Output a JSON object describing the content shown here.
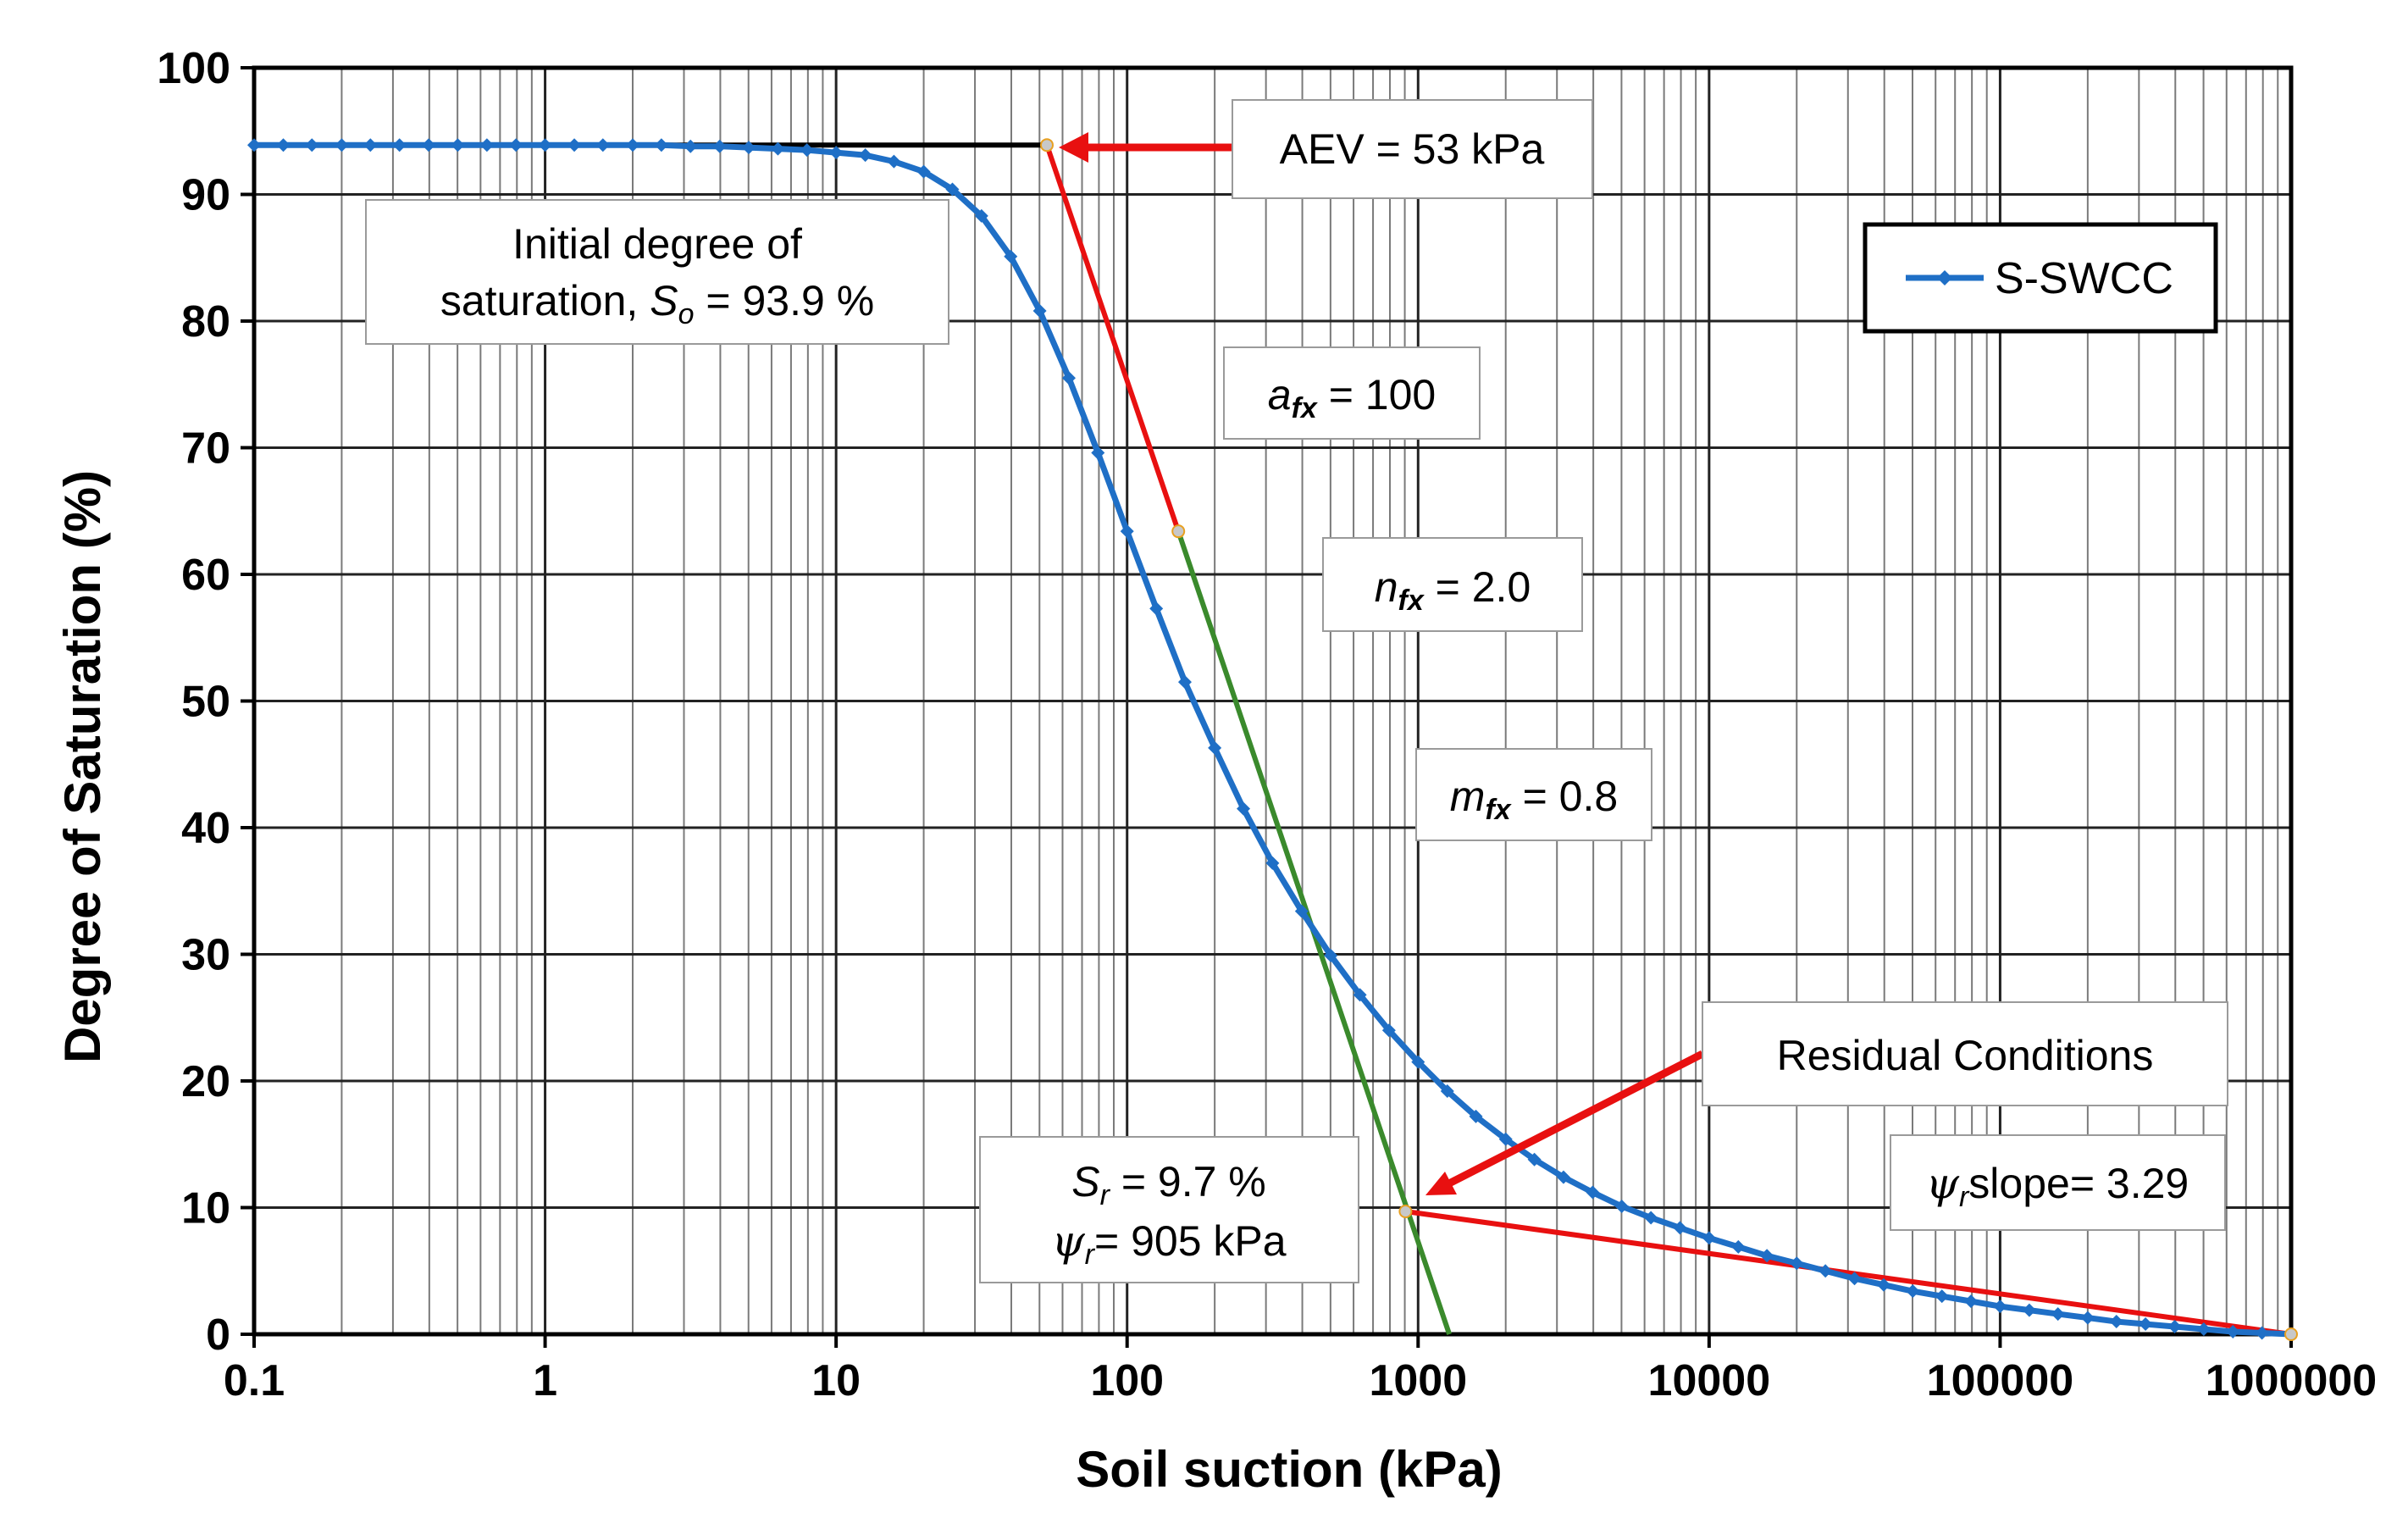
{
  "chart_data": {
    "type": "line",
    "xscale": "log",
    "xlim": [
      0.1,
      1000000
    ],
    "ylim": [
      0,
      100
    ],
    "xlabel": "Soil suction (kPa)",
    "ylabel": "Degree of Saturation (%)",
    "x_tick_labels": [
      "0.1",
      "1",
      "10",
      "100",
      "1000",
      "10000",
      "100000",
      "1000000"
    ],
    "y_tick_labels": [
      "0",
      "10",
      "20",
      "30",
      "40",
      "50",
      "60",
      "70",
      "80",
      "90",
      "100"
    ],
    "grid": true,
    "legend": {
      "position": "top-right",
      "entries": [
        "S-SWCC"
      ]
    },
    "series": [
      {
        "name": "S-SWCC",
        "color": "#1f6fc6",
        "x": [
          0.1,
          0.126,
          0.158,
          0.2,
          0.251,
          0.316,
          0.398,
          0.501,
          0.631,
          0.794,
          1,
          1.26,
          1.58,
          2,
          2.51,
          3.16,
          3.98,
          5.01,
          6.31,
          7.94,
          10,
          12.6,
          15.8,
          20,
          25.1,
          31.6,
          39.8,
          50.1,
          63.1,
          79.4,
          100,
          126,
          158,
          200,
          251,
          316,
          398,
          501,
          631,
          794,
          1000,
          1260,
          1580,
          2000,
          2510,
          3160,
          3980,
          5010,
          6310,
          7940,
          10000,
          12600,
          15800,
          20000,
          25100,
          31600,
          39800,
          50100,
          63100,
          79400,
          100000,
          126000,
          158000,
          200000,
          251000,
          316000,
          398000,
          501000,
          631000,
          794000,
          1000000
        ],
        "y": [
          93.9,
          93.9,
          93.9,
          93.9,
          93.9,
          93.9,
          93.9,
          93.9,
          93.9,
          93.9,
          93.9,
          93.9,
          93.9,
          93.9,
          93.9,
          93.8,
          93.8,
          93.7,
          93.6,
          93.5,
          93.3,
          93.1,
          92.6,
          91.8,
          90.4,
          88.3,
          85.1,
          80.8,
          75.5,
          69.6,
          63.4,
          57.3,
          51.5,
          46.3,
          41.5,
          37.2,
          33.4,
          29.9,
          26.8,
          24.0,
          21.5,
          19.2,
          17.2,
          15.4,
          13.8,
          12.4,
          11.2,
          10.1,
          9.2,
          8.4,
          7.6,
          6.9,
          6.2,
          5.6,
          5.0,
          4.4,
          3.9,
          3.4,
          3.0,
          2.6,
          2.2,
          1.9,
          1.6,
          1.3,
          1.0,
          0.8,
          0.6,
          0.4,
          0.2,
          0.1,
          0.0
        ]
      }
    ],
    "construction_lines": [
      {
        "name": "saturation-line",
        "color": "#000000",
        "points": [
          [
            0.1,
            93.9
          ],
          [
            53,
            93.9
          ]
        ]
      },
      {
        "name": "tangent-line",
        "color": "#e81010",
        "points": [
          [
            53,
            93.9
          ],
          [
            150,
            63.4
          ]
        ]
      },
      {
        "name": "tangent-extension",
        "color": "#3a8a2c",
        "points": [
          [
            150,
            63.4
          ],
          [
            1280,
            0
          ]
        ]
      },
      {
        "name": "residual-line",
        "color": "#e81010",
        "points": [
          [
            905,
            9.7
          ],
          [
            1000000,
            0
          ]
        ]
      }
    ],
    "annotations": {
      "aev": {
        "text": "AEV = 53 kPa"
      },
      "initial": {
        "line1": "Initial degree of",
        "line2_prefix": "saturation, ",
        "line2_symbol": "S",
        "line2_sub": "o",
        "line2_suffix": " = 93.9 %"
      },
      "afx": {
        "symbol": "a",
        "sub": "fx",
        "suffix": " = 100"
      },
      "nfx": {
        "symbol": "n",
        "sub": "fx",
        "suffix": " = 2.0"
      },
      "mfx": {
        "symbol": "m",
        "sub": "fx",
        "suffix": " = 0.8"
      },
      "residual": {
        "text": "Residual  Conditions"
      },
      "sr": {
        "symbol": "S",
        "sub": "r",
        "suffix": " = 9.7 %"
      },
      "psir": {
        "symbol": "ψ",
        "sub": "r",
        "suffix": "= 905 kPa"
      },
      "slope": {
        "symbol": "ψ",
        "sub": "r",
        "suffix": "slope= 3.29"
      }
    }
  }
}
